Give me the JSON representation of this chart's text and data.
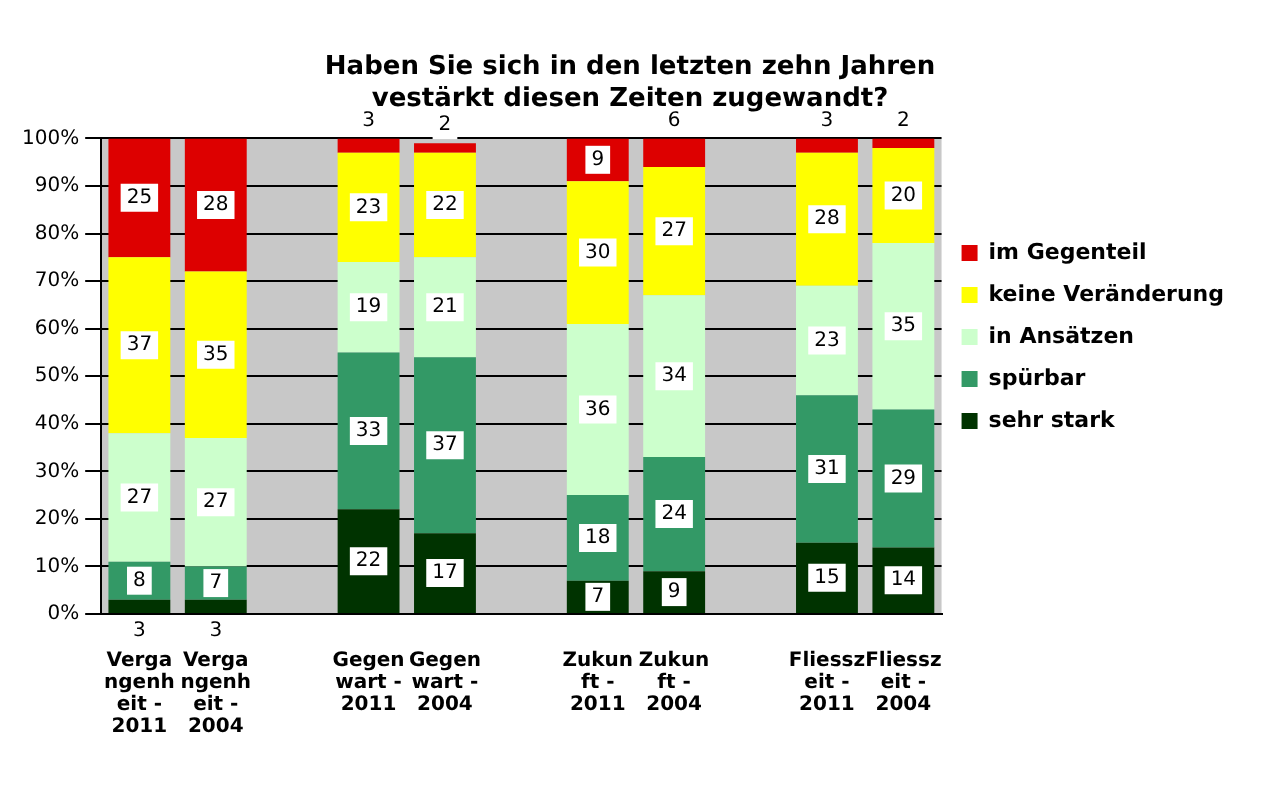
{
  "chart_data": {
    "type": "bar",
    "stacked": true,
    "title": "Haben Sie sich in den letzten zehn Jahren vestärkt diesen Zeiten zugewandt?",
    "categories": [
      "Vergangenheit - 2011",
      "Vergangenheit - 2004",
      null,
      "Gegenwart - 2011",
      "Gegenwart - 2004",
      null,
      "Zukunft - 2011",
      "Zukunft - 2004",
      null,
      "Fliesszeit - 2011",
      "Fliesszeit - 2004"
    ],
    "series": [
      {
        "name": "sehr stark",
        "color": "#003300",
        "values": [
          3,
          3,
          null,
          22,
          17,
          null,
          7,
          9,
          null,
          15,
          14
        ]
      },
      {
        "name": "spürbar",
        "color": "#339966",
        "values": [
          8,
          7,
          null,
          33,
          37,
          null,
          18,
          24,
          null,
          31,
          29
        ]
      },
      {
        "name": "in Ansätzen",
        "color": "#ccffcc",
        "values": [
          27,
          27,
          null,
          19,
          21,
          null,
          36,
          34,
          null,
          23,
          35
        ]
      },
      {
        "name": "keine Veränderung",
        "color": "#ffff00",
        "values": [
          37,
          35,
          null,
          23,
          22,
          null,
          30,
          27,
          null,
          28,
          20
        ]
      },
      {
        "name": "im Gegenteil",
        "color": "#dd0000",
        "values": [
          25,
          28,
          null,
          3,
          2,
          null,
          9,
          6,
          null,
          3,
          2
        ]
      }
    ],
    "ylim": [
      0,
      100
    ],
    "yticks": [
      {
        "value": 0,
        "label": "0%"
      },
      {
        "value": 10,
        "label": "10%"
      },
      {
        "value": 20,
        "label": "20%"
      },
      {
        "value": 30,
        "label": "30%"
      },
      {
        "value": 40,
        "label": "40%"
      },
      {
        "value": 50,
        "label": "50%"
      },
      {
        "value": 60,
        "label": "60%"
      },
      {
        "value": 70,
        "label": "70%"
      },
      {
        "value": 80,
        "label": "80%"
      },
      {
        "value": 90,
        "label": "90%"
      },
      {
        "value": 100,
        "label": "100%"
      }
    ],
    "grid": "y",
    "legend": "right",
    "data_labels": true
  }
}
